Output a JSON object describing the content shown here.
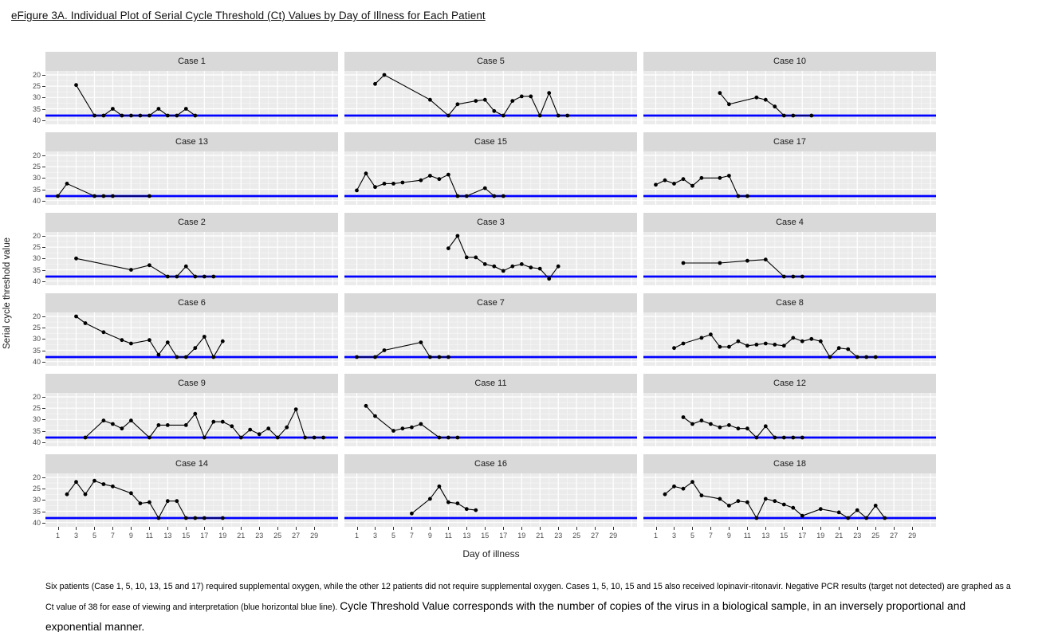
{
  "title": "eFigure 3A. Individual Plot of Serial Cycle Threshold (Ct) Values by Day of Illness for Each Patient",
  "footnote": {
    "small_part": "Six patients (Case 1, 5, 10, 13, 15 and 17) required supplemental oxygen, while the other 12 patients did not require supplemental oxygen. Cases 1, 5, 10, 15 and 15 also received lopinavir-ritonavir. Negative PCR results (target not detected) are graphed as a Ct value of 38 for ease of viewing and interpretation (blue horizontal blue line). ",
    "large_part": "Cycle Threshold Value corresponds with the number of copies of the virus in a biological sample, in an inversely proportional and exponential manner."
  },
  "chart_data": {
    "type": "line",
    "title": "eFigure 3A. Individual Plot of Serial Cycle Threshold (Ct) Values by Day of Illness for Each Patient",
    "xlabel": "Day of illness",
    "ylabel": "Serial cycle threshold value",
    "xticks": [
      1,
      3,
      5,
      7,
      9,
      11,
      13,
      15,
      17,
      19,
      21,
      23,
      25,
      27,
      29
    ],
    "yticks": [
      20,
      25,
      30,
      35,
      40
    ],
    "xlim": [
      -0.35,
      31.6
    ],
    "ylim_reversed": [
      18.24,
      41.88
    ],
    "grid": "on",
    "y_axis_reversed": true,
    "threshold_line": {
      "value": 38,
      "color": "#0000FF",
      "meaning": "Negative PCR graphed as Ct 38"
    },
    "colors": {
      "panel_bg": "#EBEBEB",
      "strip_bg": "#D9D9D9",
      "grid_major": "#FFFFFF",
      "grid_minor": "#F7F7F7",
      "series": "#000000"
    },
    "facets": [
      {
        "label": "Case 1",
        "points": [
          [
            3,
            24.5
          ],
          [
            5,
            38
          ],
          [
            6,
            38
          ],
          [
            7,
            35
          ],
          [
            8,
            38
          ],
          [
            9,
            38
          ],
          [
            10,
            38
          ],
          [
            11,
            38
          ],
          [
            12,
            35
          ],
          [
            13,
            38
          ],
          [
            14,
            38
          ],
          [
            15,
            35
          ],
          [
            16,
            38
          ]
        ]
      },
      {
        "label": "Case 5",
        "points": [
          [
            3,
            24
          ],
          [
            4,
            20
          ],
          [
            9,
            31
          ],
          [
            11,
            38
          ],
          [
            12,
            33
          ],
          [
            14,
            31.5
          ],
          [
            15,
            31
          ],
          [
            16,
            36
          ],
          [
            17,
            38
          ],
          [
            18,
            31.5
          ],
          [
            19,
            29.5
          ],
          [
            20,
            29.5
          ],
          [
            21,
            38
          ],
          [
            22,
            28
          ],
          [
            23,
            38
          ],
          [
            24,
            38
          ]
        ]
      },
      {
        "label": "Case 10",
        "points": [
          [
            8,
            28
          ],
          [
            9,
            33
          ],
          [
            12,
            30
          ],
          [
            13,
            31
          ],
          [
            14,
            34
          ],
          [
            15,
            38
          ],
          [
            16,
            38
          ],
          [
            18,
            38
          ]
        ]
      },
      {
        "label": "Case 13",
        "points": [
          [
            1,
            38
          ],
          [
            2,
            32.5
          ],
          [
            5,
            38
          ],
          [
            6,
            38
          ],
          [
            7,
            38
          ],
          [
            11,
            38
          ]
        ]
      },
      {
        "label": "Case 15",
        "points": [
          [
            1,
            35.5
          ],
          [
            2,
            28
          ],
          [
            3,
            34
          ],
          [
            4,
            32.5
          ],
          [
            5,
            32.5
          ],
          [
            6,
            32
          ],
          [
            8,
            31
          ],
          [
            9,
            29
          ],
          [
            10,
            30.5
          ],
          [
            11,
            28.5
          ],
          [
            12,
            38
          ],
          [
            13,
            38
          ],
          [
            15,
            34.5
          ],
          [
            16,
            38
          ],
          [
            17,
            38
          ]
        ]
      },
      {
        "label": "Case 17",
        "points": [
          [
            1,
            33
          ],
          [
            2,
            31
          ],
          [
            3,
            32.5
          ],
          [
            4,
            30.5
          ],
          [
            5,
            33.5
          ],
          [
            6,
            30
          ],
          [
            8,
            30
          ],
          [
            9,
            29
          ],
          [
            10,
            38
          ],
          [
            11,
            38
          ]
        ]
      },
      {
        "label": "Case 2",
        "points": [
          [
            3,
            30
          ],
          [
            9,
            35
          ],
          [
            11,
            33
          ],
          [
            13,
            38
          ],
          [
            14,
            38
          ],
          [
            15,
            33.5
          ],
          [
            16,
            38
          ],
          [
            17,
            38
          ],
          [
            18,
            38
          ]
        ]
      },
      {
        "label": "Case 3",
        "points": [
          [
            11,
            25.5
          ],
          [
            12,
            20
          ],
          [
            13,
            29.5
          ],
          [
            14,
            29.5
          ],
          [
            15,
            32.5
          ],
          [
            16,
            33.5
          ],
          [
            17,
            35.5
          ],
          [
            18,
            33.5
          ],
          [
            19,
            32.5
          ],
          [
            20,
            34
          ],
          [
            21,
            34.5
          ],
          [
            22,
            39
          ],
          [
            23,
            33.5
          ]
        ]
      },
      {
        "label": "Case 4",
        "points": [
          [
            4,
            32
          ],
          [
            8,
            32
          ],
          [
            11,
            31
          ],
          [
            13,
            30.5
          ],
          [
            15,
            38
          ],
          [
            16,
            38
          ],
          [
            17,
            38
          ]
        ]
      },
      {
        "label": "Case 6",
        "points": [
          [
            3,
            20
          ],
          [
            4,
            23
          ],
          [
            6,
            27
          ],
          [
            8,
            30.5
          ],
          [
            9,
            32
          ],
          [
            11,
            30.5
          ],
          [
            12,
            37
          ],
          [
            13,
            31.5
          ],
          [
            14,
            38
          ],
          [
            15,
            38
          ],
          [
            16,
            34
          ],
          [
            17,
            29
          ],
          [
            18,
            38
          ],
          [
            19,
            31
          ]
        ]
      },
      {
        "label": "Case 7",
        "points": [
          [
            1,
            38
          ],
          [
            3,
            38
          ],
          [
            4,
            35
          ],
          [
            8,
            31.5
          ],
          [
            9,
            38
          ],
          [
            10,
            38
          ],
          [
            11,
            38
          ]
        ]
      },
      {
        "label": "Case 8",
        "points": [
          [
            3,
            34
          ],
          [
            4,
            32
          ],
          [
            6,
            29.5
          ],
          [
            7,
            28
          ],
          [
            8,
            33.5
          ],
          [
            9,
            33.5
          ],
          [
            10,
            31
          ],
          [
            11,
            33
          ],
          [
            12,
            32.5
          ],
          [
            13,
            32
          ],
          [
            14,
            32.5
          ],
          [
            15,
            33
          ],
          [
            16,
            29.5
          ],
          [
            17,
            31
          ],
          [
            18,
            30
          ],
          [
            19,
            31
          ],
          [
            20,
            38
          ],
          [
            21,
            34
          ],
          [
            22,
            34.5
          ],
          [
            23,
            38
          ],
          [
            24,
            38
          ],
          [
            25,
            38
          ]
        ]
      },
      {
        "label": "Case 9",
        "points": [
          [
            4,
            38
          ],
          [
            6,
            30.5
          ],
          [
            7,
            32
          ],
          [
            8,
            34
          ],
          [
            9,
            30.5
          ],
          [
            11,
            38
          ],
          [
            12,
            32.5
          ],
          [
            13,
            32.5
          ],
          [
            15,
            32.5
          ],
          [
            16,
            27.5
          ],
          [
            17,
            38
          ],
          [
            18,
            31
          ],
          [
            19,
            31
          ],
          [
            20,
            33
          ],
          [
            21,
            38
          ],
          [
            22,
            34.5
          ],
          [
            23,
            36.5
          ],
          [
            24,
            34
          ],
          [
            25,
            38
          ],
          [
            26,
            33.5
          ],
          [
            27,
            25.5
          ],
          [
            28,
            38
          ],
          [
            29,
            38
          ],
          [
            30,
            38
          ]
        ]
      },
      {
        "label": "Case 11",
        "points": [
          [
            2,
            24
          ],
          [
            3,
            28.5
          ],
          [
            5,
            35
          ],
          [
            6,
            34
          ],
          [
            7,
            33.5
          ],
          [
            8,
            32
          ],
          [
            10,
            38
          ],
          [
            11,
            38
          ],
          [
            12,
            38
          ]
        ]
      },
      {
        "label": "Case 12",
        "points": [
          [
            4,
            29
          ],
          [
            5,
            32
          ],
          [
            6,
            30.5
          ],
          [
            7,
            32
          ],
          [
            8,
            33.5
          ],
          [
            9,
            32.5
          ],
          [
            10,
            34
          ],
          [
            11,
            34
          ],
          [
            12,
            38
          ],
          [
            13,
            33
          ],
          [
            14,
            38
          ],
          [
            15,
            38
          ],
          [
            16,
            38
          ],
          [
            17,
            38
          ]
        ]
      },
      {
        "label": "Case 14",
        "points": [
          [
            2,
            27.5
          ],
          [
            3,
            22
          ],
          [
            4,
            27.5
          ],
          [
            5,
            21.5
          ],
          [
            6,
            23
          ],
          [
            7,
            24
          ],
          [
            9,
            27
          ],
          [
            10,
            31.5
          ],
          [
            11,
            31
          ],
          [
            12,
            38
          ],
          [
            13,
            30.5
          ],
          [
            14,
            30.5
          ],
          [
            15,
            38
          ],
          [
            16,
            38
          ],
          [
            17,
            38
          ],
          [
            19,
            38
          ]
        ]
      },
      {
        "label": "Case 16",
        "points": [
          [
            7,
            36
          ],
          [
            9,
            29.5
          ],
          [
            10,
            24
          ],
          [
            11,
            31
          ],
          [
            12,
            31.5
          ],
          [
            13,
            34
          ],
          [
            14,
            34.5
          ]
        ]
      },
      {
        "label": "Case 18",
        "points": [
          [
            2,
            27.5
          ],
          [
            3,
            24
          ],
          [
            4,
            25
          ],
          [
            5,
            22
          ],
          [
            6,
            28
          ],
          [
            8,
            29.5
          ],
          [
            9,
            32.5
          ],
          [
            10,
            30.5
          ],
          [
            11,
            31
          ],
          [
            12,
            38
          ],
          [
            13,
            29.5
          ],
          [
            14,
            30.5
          ],
          [
            15,
            32
          ],
          [
            16,
            33.5
          ],
          [
            17,
            37
          ],
          [
            19,
            34
          ],
          [
            21,
            35.5
          ],
          [
            22,
            38
          ],
          [
            23,
            34.5
          ],
          [
            24,
            38
          ],
          [
            25,
            32.5
          ],
          [
            26,
            38
          ]
        ]
      }
    ]
  }
}
